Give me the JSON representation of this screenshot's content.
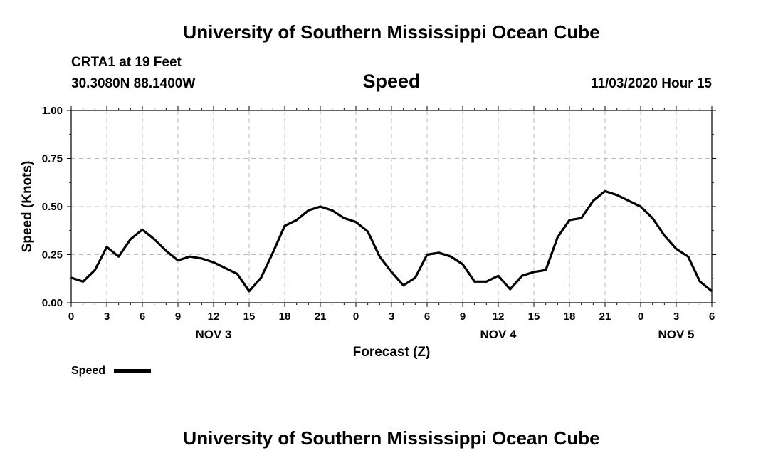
{
  "header": {
    "title": "University of Southern Mississippi Ocean Cube",
    "station": "CRTA1 at 19 Feet",
    "coords": "30.3080N 88.1400W",
    "variable": "Speed",
    "timestamp": "11/03/2020 Hour 15"
  },
  "footer": {
    "title": "University of Southern Mississippi Ocean Cube"
  },
  "chart_data": {
    "type": "line",
    "title": "Speed",
    "xlabel": "Forecast (Z)",
    "ylabel": "Speed (Knots)",
    "ylim": [
      0,
      1
    ],
    "yticks": [
      "0.00",
      "0.25",
      "0.50",
      "0.75",
      "1.00"
    ],
    "xlim": [
      0,
      54
    ],
    "xticks": [
      "0",
      "3",
      "6",
      "9",
      "12",
      "15",
      "18",
      "21",
      "0",
      "3",
      "6",
      "9",
      "12",
      "15",
      "18",
      "21",
      "0",
      "3",
      "6"
    ],
    "day_labels": [
      {
        "label": "NOV 3",
        "hour": 12
      },
      {
        "label": "NOV 4",
        "hour": 36
      },
      {
        "label": "NOV 5",
        "hour": 51
      }
    ],
    "grid": true,
    "line_color": "#000000",
    "legend": {
      "label": "Speed",
      "placement": "bottom-left"
    },
    "series": [
      {
        "name": "Speed",
        "x": [
          0,
          1,
          2,
          3,
          4,
          5,
          6,
          7,
          8,
          9,
          10,
          11,
          12,
          13,
          14,
          15,
          16,
          17,
          18,
          19,
          20,
          21,
          22,
          23,
          24,
          25,
          26,
          27,
          28,
          29,
          30,
          31,
          32,
          33,
          34,
          35,
          36,
          37,
          38,
          39,
          40,
          41,
          42,
          43,
          44,
          45,
          46,
          47,
          48,
          49,
          50,
          51,
          52,
          53,
          54
        ],
        "values": [
          0.13,
          0.11,
          0.17,
          0.29,
          0.24,
          0.33,
          0.38,
          0.33,
          0.27,
          0.22,
          0.24,
          0.23,
          0.21,
          0.18,
          0.15,
          0.06,
          0.13,
          0.26,
          0.4,
          0.43,
          0.48,
          0.5,
          0.48,
          0.44,
          0.42,
          0.37,
          0.24,
          0.16,
          0.09,
          0.13,
          0.25,
          0.26,
          0.24,
          0.2,
          0.11,
          0.11,
          0.14,
          0.07,
          0.14,
          0.16,
          0.17,
          0.34,
          0.43,
          0.44,
          0.53,
          0.58,
          0.56,
          0.53,
          0.5,
          0.44,
          0.35,
          0.28,
          0.24,
          0.11,
          0.06
        ]
      }
    ]
  }
}
